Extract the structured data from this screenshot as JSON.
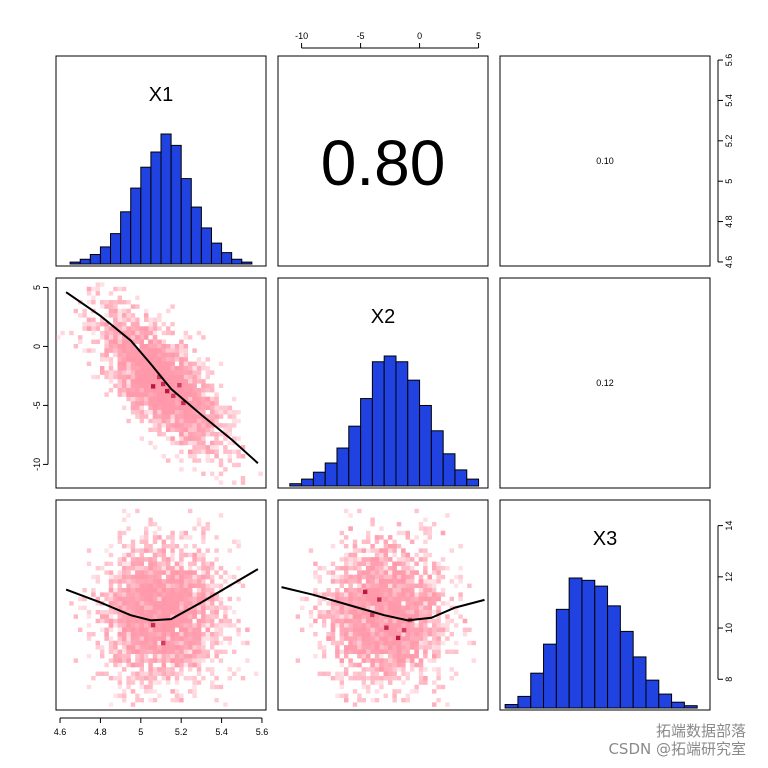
{
  "chart_data": {
    "type": "scatter-matrix",
    "variables": [
      {
        "name": "X1",
        "range": [
          4.58,
          5.62
        ],
        "hist_bins": [
          4.65,
          4.7,
          4.75,
          4.8,
          4.85,
          4.9,
          4.95,
          5.0,
          5.05,
          5.1,
          5.15,
          5.2,
          5.25,
          5.3,
          5.35,
          5.4,
          5.45,
          5.5,
          5.55
        ],
        "hist_counts": [
          2,
          5,
          10,
          18,
          32,
          55,
          80,
          102,
          118,
          137,
          125,
          90,
          60,
          38,
          22,
          12,
          5,
          2
        ]
      },
      {
        "name": "X2",
        "range": [
          -12,
          5.8
        ],
        "hist_bins": [
          -11,
          -10,
          -9,
          -8,
          -7,
          -6,
          -5,
          -4,
          -3,
          -2,
          -1,
          0,
          1,
          2,
          3,
          4,
          5
        ],
        "hist_counts": [
          2,
          6,
          12,
          20,
          33,
          52,
          76,
          108,
          113,
          108,
          92,
          70,
          48,
          28,
          14,
          6
        ]
      },
      {
        "name": "X3",
        "range": [
          6.8,
          15
        ],
        "hist_bins": [
          7,
          7.5,
          8,
          8.5,
          9,
          9.5,
          10,
          10.5,
          11,
          11.5,
          12,
          12.5,
          13,
          13.5,
          14,
          14.5
        ],
        "hist_counts": [
          3,
          10,
          30,
          55,
          85,
          112,
          110,
          105,
          88,
          66,
          44,
          24,
          12,
          5,
          2
        ]
      }
    ],
    "axes": {
      "left": {
        "row": 1,
        "ticks": [
          5,
          0,
          -5,
          -10
        ]
      },
      "top": {
        "col": 1,
        "ticks": [
          -10,
          -5,
          0,
          5
        ]
      },
      "right_row0": {
        "ticks": [
          4.6,
          4.8,
          5.0,
          5.2,
          5.4,
          5.6
        ]
      },
      "right_row2": {
        "ticks": [
          8,
          10,
          12,
          14
        ]
      },
      "bottom": {
        "col": 0,
        "ticks": [
          4.6,
          4.8,
          5.0,
          5.2,
          5.4,
          5.6
        ]
      }
    },
    "correlations": [
      {
        "row": 0,
        "col": 1,
        "label": "0.80",
        "size": "large"
      },
      {
        "row": 0,
        "col": 2,
        "label": "0.10",
        "size": "small"
      },
      {
        "row": 1,
        "col": 2,
        "label": "0.12",
        "size": "small"
      }
    ],
    "density_color": "#ff99aa",
    "density_dark": "#b00030",
    "bar_color": "#2042e0",
    "smooth_color": "#000000",
    "smooth_lines": {
      "x2_vs_x1": [
        [
          4.63,
          4.6
        ],
        [
          4.8,
          2.6
        ],
        [
          4.95,
          0.5
        ],
        [
          5.05,
          -1.5
        ],
        [
          5.15,
          -3.6
        ],
        [
          5.3,
          -5.8
        ],
        [
          5.45,
          -7.9
        ],
        [
          5.58,
          -9.9
        ]
      ],
      "x3_vs_x1": [
        [
          4.63,
          11.5
        ],
        [
          4.8,
          11.0
        ],
        [
          4.95,
          10.5
        ],
        [
          5.05,
          10.3
        ],
        [
          5.15,
          10.35
        ],
        [
          5.3,
          11.0
        ],
        [
          5.45,
          11.7
        ],
        [
          5.58,
          12.3
        ]
      ],
      "x3_vs_x2": [
        [
          -11.7,
          11.6
        ],
        [
          -9,
          11.3
        ],
        [
          -6,
          10.9
        ],
        [
          -3,
          10.5
        ],
        [
          -1,
          10.3
        ],
        [
          1,
          10.4
        ],
        [
          3,
          10.8
        ],
        [
          5.5,
          11.1
        ]
      ]
    }
  },
  "watermark": {
    "line1": "拓端数据部落",
    "line2": "CSDN @拓端研究室"
  }
}
